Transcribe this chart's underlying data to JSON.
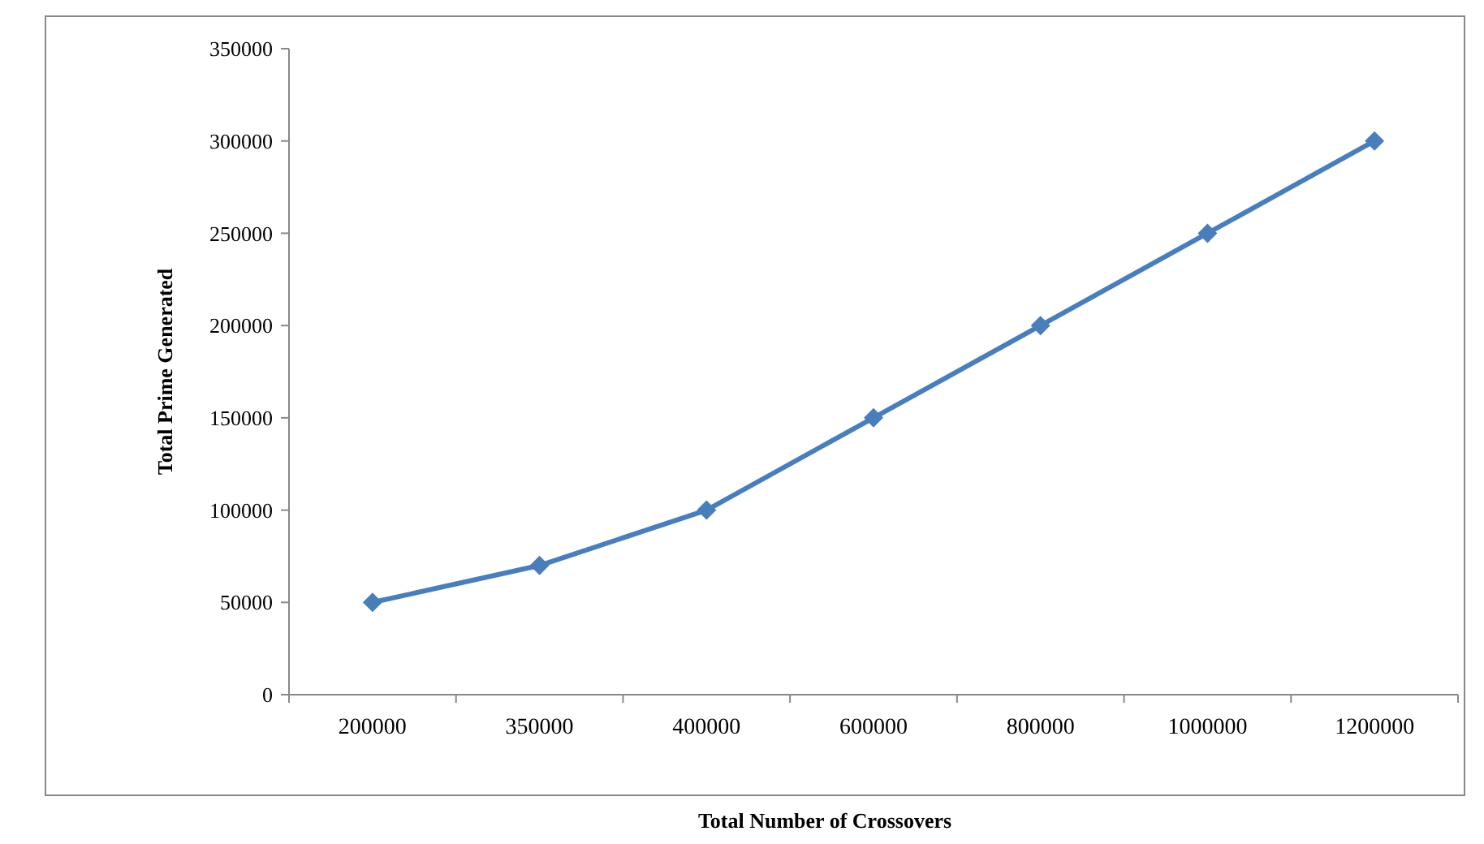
{
  "chart_data": {
    "type": "line",
    "xlabel": "Total Number of Crossovers",
    "ylabel": "Total Prime Generated",
    "categories": [
      "200000",
      "350000",
      "400000",
      "600000",
      "800000",
      "1000000",
      "1200000"
    ],
    "series": [
      {
        "color": "#4a7ebb",
        "values": [
          50000,
          70000,
          100000,
          150000,
          200000,
          250000,
          300000
        ]
      }
    ],
    "ylim": [
      0,
      350000
    ],
    "yticks": [
      0,
      50000,
      100000,
      150000,
      200000,
      250000,
      300000,
      350000
    ],
    "grid": false,
    "marker": "diamond",
    "line_style": "solid"
  }
}
